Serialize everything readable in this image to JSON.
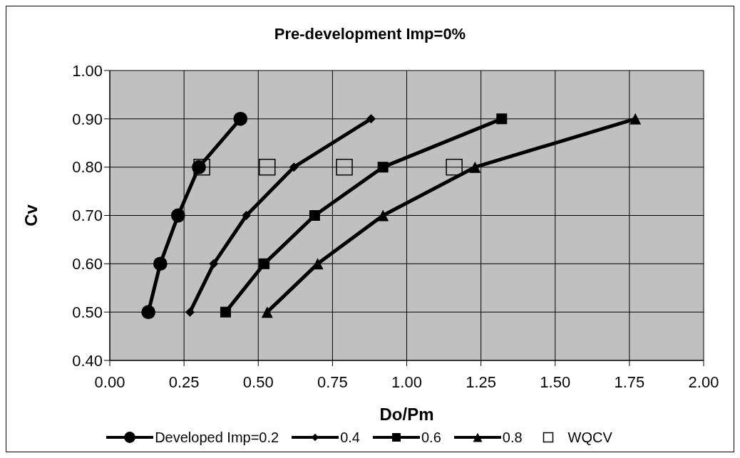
{
  "chart_data": {
    "type": "line",
    "title": "Pre-development Imp=0%",
    "xlabel": "Do/Pm",
    "ylabel": "Cv",
    "xlim": [
      0,
      2
    ],
    "xticks": [
      {
        "value": 0,
        "label": "0.00"
      },
      {
        "value": 0.25,
        "label": "0.25"
      },
      {
        "value": 0.5,
        "label": "0.50"
      },
      {
        "value": 0.75,
        "label": "0.75"
      },
      {
        "value": 1,
        "label": "1.00"
      },
      {
        "value": 1.25,
        "label": "1.25"
      },
      {
        "value": 1.5,
        "label": "1.50"
      },
      {
        "value": 1.75,
        "label": "1.75"
      },
      {
        "value": 2,
        "label": "2.00"
      }
    ],
    "ylim": [
      0.4,
      1
    ],
    "yticks": [
      {
        "value": 0.4,
        "label": "0.40"
      },
      {
        "value": 0.5,
        "label": "0.50"
      },
      {
        "value": 0.6,
        "label": "0.60"
      },
      {
        "value": 0.7,
        "label": "0.70"
      },
      {
        "value": 0.8,
        "label": "0.80"
      },
      {
        "value": 0.9,
        "label": "0.90"
      },
      {
        "value": 1,
        "label": "1.00"
      }
    ],
    "grid": true,
    "legend": "bottom",
    "line_style": "solid",
    "series": [
      {
        "name": "Developed Imp=0.2",
        "marker": "circle",
        "color": "#000000",
        "x": [
          0.13,
          0.17,
          0.23,
          0.3,
          0.44
        ],
        "values": [
          0.5,
          0.6,
          0.7,
          0.8,
          0.9
        ]
      },
      {
        "name": "0.4",
        "marker": "diamond",
        "color": "#000000",
        "x": [
          0.27,
          0.35,
          0.46,
          0.62,
          0.88
        ],
        "values": [
          0.5,
          0.6,
          0.7,
          0.8,
          0.9
        ]
      },
      {
        "name": "0.6",
        "marker": "square",
        "color": "#000000",
        "x": [
          0.39,
          0.52,
          0.69,
          0.92,
          1.32
        ],
        "values": [
          0.5,
          0.6,
          0.7,
          0.8,
          0.9
        ]
      },
      {
        "name": "0.8",
        "marker": "triangle",
        "color": "#000000",
        "x": [
          0.53,
          0.7,
          0.92,
          1.23,
          1.77
        ],
        "values": [
          0.5,
          0.6,
          0.7,
          0.8,
          0.9
        ]
      },
      {
        "name": "WQCV",
        "type": "scatter",
        "marker": "square",
        "color": "#000000",
        "x": [
          0.31,
          0.53,
          0.79,
          1.16
        ],
        "values": [
          0.8,
          0.8,
          0.8,
          0.8
        ]
      }
    ]
  }
}
